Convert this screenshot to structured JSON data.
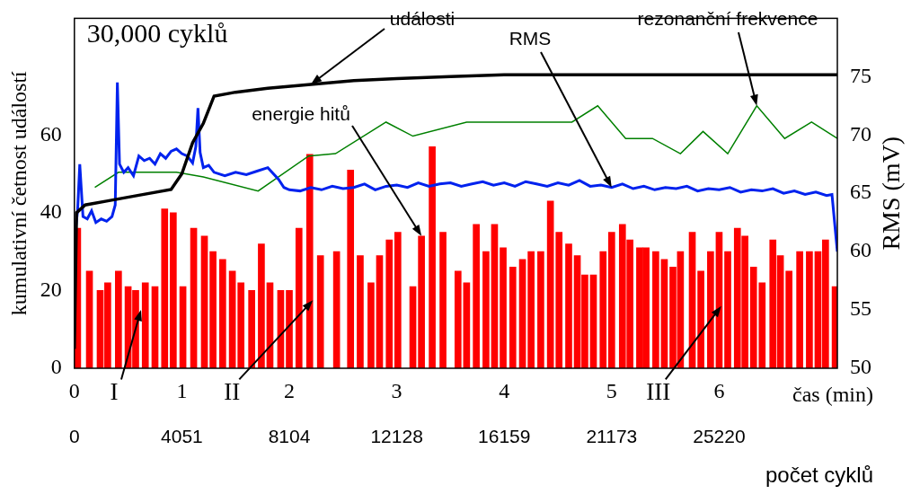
{
  "chart_data": {
    "type": "bar",
    "title": "30,000 cyklů",
    "x_label": "čas (min)",
    "x2_label": "počet cyklů",
    "y_label": "kumulativní četnost událostí",
    "y2_label": "RMS (mV)",
    "xlim": [
      0,
      7.1
    ],
    "xticks": [
      0,
      1,
      2,
      3,
      4,
      5,
      6
    ],
    "x2ticks": [
      0,
      4051,
      8104,
      12128,
      16159,
      21173,
      25220
    ],
    "ylim": [
      0,
      90
    ],
    "yticks": [
      0,
      20,
      40,
      60
    ],
    "y2lim": [
      50,
      80
    ],
    "y2ticks": [
      50,
      55,
      60,
      65,
      70,
      75
    ],
    "grid": false,
    "series": [
      {
        "name": "energie hitů",
        "type": "bar",
        "color": "#ff0000",
        "x": [
          0.03,
          0.14,
          0.24,
          0.31,
          0.41,
          0.5,
          0.57,
          0.66,
          0.75,
          0.84,
          0.92,
          1.01,
          1.11,
          1.21,
          1.29,
          1.38,
          1.47,
          1.55,
          1.65,
          1.74,
          1.82,
          1.92,
          2.0,
          2.09,
          2.19,
          2.29,
          2.44,
          2.57,
          2.66,
          2.76,
          2.84,
          2.93,
          3.01,
          3.15,
          3.23,
          3.33,
          3.43,
          3.57,
          3.65,
          3.74,
          3.83,
          3.91,
          3.99,
          4.08,
          4.17,
          4.25,
          4.34,
          4.43,
          4.51,
          4.6,
          4.68,
          4.75,
          4.83,
          4.92,
          5.0,
          5.1,
          5.17,
          5.26,
          5.32,
          5.41,
          5.49,
          5.57,
          5.64,
          5.75,
          5.83,
          5.92,
          6.0,
          6.08,
          6.17,
          6.24,
          6.32,
          6.4,
          6.5,
          6.57,
          6.65,
          6.75,
          6.84,
          6.92,
          6.99,
          7.08
        ],
        "values": [
          36,
          25,
          20,
          22,
          25,
          21,
          20,
          22,
          21,
          41,
          40,
          21,
          36,
          34,
          30,
          28,
          25,
          22,
          20,
          32,
          22,
          20,
          20,
          36,
          55,
          29,
          30,
          51,
          29,
          22,
          29,
          33,
          35,
          21,
          34,
          57,
          35,
          25,
          22,
          37,
          30,
          37,
          31,
          26,
          28,
          30,
          30,
          43,
          35,
          32,
          29,
          24,
          24,
          30,
          35,
          37,
          33,
          31,
          31,
          30,
          28,
          26,
          30,
          35,
          25,
          30,
          35,
          30,
          36,
          34,
          26,
          22,
          33,
          29,
          25,
          30,
          30,
          30,
          33,
          21
        ]
      },
      {
        "name": "události",
        "type": "line",
        "color": "#000000",
        "x": [
          0,
          0.02,
          0.1,
          0.3,
          0.6,
          0.9,
          1.0,
          1.1,
          1.2,
          1.3,
          1.5,
          1.8,
          2.2,
          2.6,
          3.0,
          3.5,
          4.0,
          5.0,
          6.0,
          7.1
        ],
        "values": [
          5,
          40,
          42,
          43,
          44.5,
          46,
          50,
          58,
          63,
          70,
          71,
          72,
          73,
          74,
          74.5,
          75,
          75.5,
          75.5,
          75.5,
          75.5
        ]
      },
      {
        "name": "RMS",
        "type": "line",
        "color": "#0022ee",
        "axis": "y2",
        "x": [
          0,
          0.03,
          0.05,
          0.08,
          0.12,
          0.16,
          0.2,
          0.25,
          0.3,
          0.35,
          0.38,
          0.4,
          0.42,
          0.46,
          0.5,
          0.55,
          0.6,
          0.65,
          0.7,
          0.75,
          0.8,
          0.85,
          0.9,
          0.95,
          1.0,
          1.05,
          1.1,
          1.13,
          1.15,
          1.17,
          1.2,
          1.25,
          1.3,
          1.4,
          1.5,
          1.6,
          1.7,
          1.8,
          1.9,
          1.95,
          2.0,
          2.1,
          2.2,
          2.3,
          2.4,
          2.5,
          2.6,
          2.7,
          2.8,
          2.9,
          3.0,
          3.1,
          3.2,
          3.3,
          3.4,
          3.5,
          3.6,
          3.7,
          3.8,
          3.9,
          4.0,
          4.1,
          4.2,
          4.3,
          4.4,
          4.5,
          4.6,
          4.7,
          4.8,
          4.9,
          5.0,
          5.1,
          5.2,
          5.3,
          5.4,
          5.5,
          5.6,
          5.7,
          5.8,
          5.9,
          6.0,
          6.1,
          6.2,
          6.3,
          6.4,
          6.5,
          6.6,
          6.7,
          6.8,
          6.9,
          7.0,
          7.05,
          7.1
        ],
        "values": [
          61,
          63.5,
          67.5,
          63,
          62.8,
          63.5,
          62.5,
          62.8,
          62.6,
          63,
          64,
          74.5,
          67.5,
          66.8,
          67.2,
          66.5,
          68.2,
          67.8,
          68,
          67.5,
          68.4,
          68,
          68.6,
          68.8,
          68.4,
          68.2,
          67.6,
          69,
          72.3,
          68.5,
          67.2,
          67.4,
          66.8,
          66.5,
          66.8,
          66.6,
          66.9,
          67.2,
          66.2,
          65.5,
          65.3,
          65.2,
          65.5,
          65.3,
          65.6,
          65.4,
          65.5,
          65.8,
          65.3,
          65.6,
          65.7,
          65.5,
          65.9,
          65.6,
          65.8,
          65.9,
          65.6,
          65.8,
          66,
          65.7,
          65.9,
          65.6,
          66,
          65.8,
          65.6,
          65.9,
          65.7,
          66.1,
          65.6,
          65.7,
          65.5,
          65.8,
          65.4,
          65.6,
          65.3,
          65.5,
          65.4,
          65.6,
          65.2,
          65.4,
          65.3,
          65.5,
          65.1,
          65.3,
          65.2,
          65.4,
          65,
          65.2,
          64.9,
          65.1,
          64.8,
          64.9,
          60
        ]
      },
      {
        "name": "rezonanční frekvence",
        "type": "line",
        "color": "#008000",
        "axis": "y2",
        "x": [
          0.19,
          0.41,
          0.95,
          1.2,
          1.71,
          2.18,
          2.43,
          2.9,
          3.15,
          3.65,
          4.16,
          4.63,
          4.87,
          5.13,
          5.38,
          5.64,
          5.85,
          6.08,
          6.35,
          6.61,
          6.86,
          7.1
        ],
        "values": [
          65.5,
          66.8,
          66.8,
          66.4,
          65.2,
          68.2,
          68.4,
          71.1,
          69.9,
          71.1,
          71.1,
          71.1,
          72.5,
          69.7,
          69.7,
          68.4,
          70.3,
          68.4,
          72.5,
          69.7,
          71.1,
          69.7
        ]
      }
    ],
    "annotations": [
      {
        "text": "I",
        "x": 0.62,
        "y": 15
      },
      {
        "text": "II",
        "x": 2.22,
        "y": 17.5
      },
      {
        "text": "III",
        "x": 6.02,
        "y": 16
      }
    ]
  }
}
